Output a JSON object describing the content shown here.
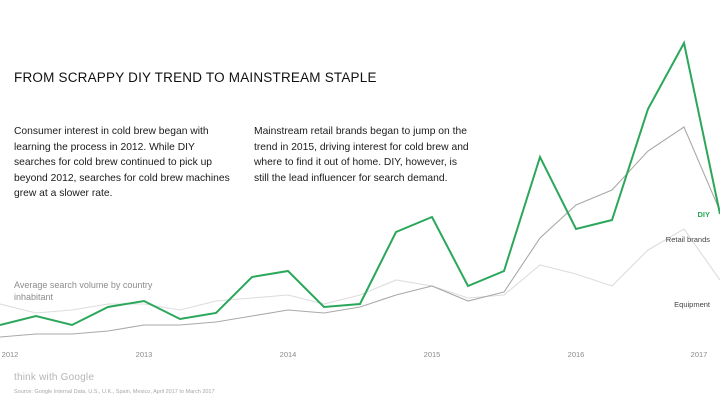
{
  "heading": {
    "title": "FROM SCRAPPY DIY TREND TO MAINSTREAM STAPLE",
    "paragraph_1": "Consumer interest in cold brew began with learning the process in 2012. While DIY searches for cold brew continued to pick up beyond 2012, searches for cold brew machines grew at a slower rate.",
    "paragraph_2": "Mainstream retail brands began to jump on the trend in 2015, driving interest for cold brew and where to find it out of home. DIY, however, is still the lead influencer for search demand."
  },
  "footer": {
    "brand": "think with Google",
    "source": "Source: Google Internal Data, U.S., U.K., Spain, Mexico, April 2017 to March 2017"
  },
  "chart_data": {
    "type": "line",
    "ylabel": "Average search volume by country inhabitant",
    "xlabel": "",
    "x_ticks": [
      "2012",
      "2013",
      "2014",
      "2015",
      "2016",
      "2017"
    ],
    "xlim": [
      2012,
      2017
    ],
    "ylim": [
      0,
      100
    ],
    "grid": false,
    "colors": {
      "DIY": "#2aa75a",
      "Retail brands": "#a9a9a9",
      "Equipment": "#dddddd"
    },
    "series": [
      {
        "name": "DIY",
        "x": [
          2012.0,
          2012.25,
          2012.5,
          2012.75,
          2013.0,
          2013.25,
          2013.5,
          2013.75,
          2014.0,
          2014.25,
          2014.5,
          2014.75,
          2015.0,
          2015.25,
          2015.5,
          2015.75,
          2016.0,
          2016.25,
          2016.5,
          2016.75,
          2017.0
        ],
        "values": [
          5,
          8,
          5,
          11,
          13,
          7,
          9,
          21,
          23,
          11,
          12,
          36,
          41,
          18,
          23,
          61,
          37,
          40,
          77,
          99,
          42
        ]
      },
      {
        "name": "Retail brands",
        "x": [
          2012.0,
          2012.25,
          2012.5,
          2012.75,
          2013.0,
          2013.25,
          2013.5,
          2013.75,
          2014.0,
          2014.25,
          2014.5,
          2014.75,
          2015.0,
          2015.25,
          2015.5,
          2015.75,
          2016.0,
          2016.25,
          2016.5,
          2016.75,
          2017.0
        ],
        "values": [
          1,
          2,
          2,
          3,
          5,
          5,
          6,
          8,
          10,
          9,
          11,
          15,
          18,
          13,
          16,
          34,
          45,
          50,
          63,
          71,
          43
        ]
      },
      {
        "name": "Equipment",
        "x": [
          2012.0,
          2012.25,
          2012.5,
          2012.75,
          2013.0,
          2013.25,
          2013.5,
          2013.75,
          2014.0,
          2014.25,
          2014.5,
          2014.75,
          2015.0,
          2015.25,
          2015.5,
          2015.75,
          2016.0,
          2016.25,
          2016.5,
          2016.75,
          2017.0
        ],
        "values": [
          12,
          9,
          10,
          12,
          12,
          10,
          13,
          14,
          15,
          12,
          15,
          20,
          18,
          14,
          15,
          25,
          22,
          18,
          30,
          37,
          20
        ]
      }
    ]
  }
}
